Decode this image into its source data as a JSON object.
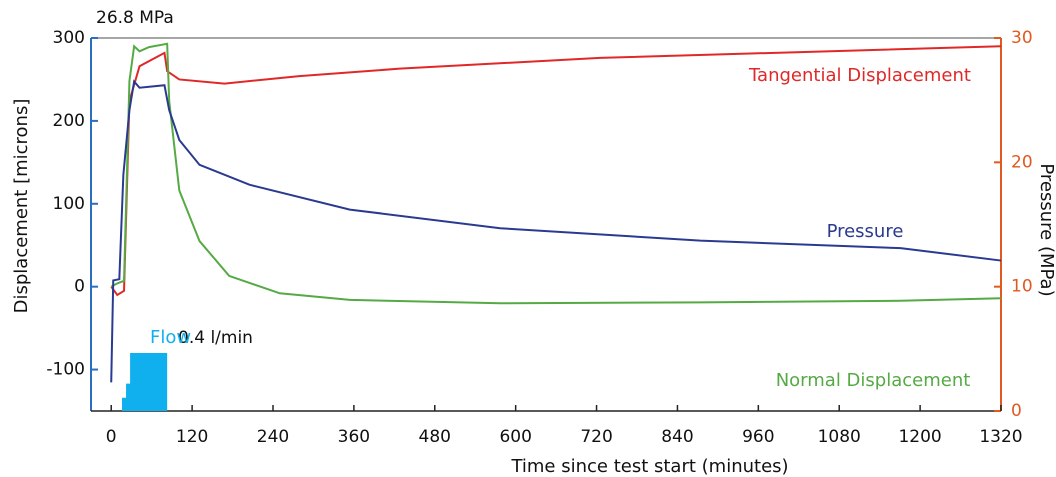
{
  "chart_data": {
    "type": "line",
    "title": "26.8 MPa",
    "x_label": "Time since test start (minutes)",
    "y_label": "Displacement [microns]",
    "y2_label": "Pressure (MPa)",
    "xlim": [
      -30,
      1320
    ],
    "xticks": [
      0,
      120,
      240,
      360,
      480,
      600,
      720,
      840,
      960,
      1080,
      1200,
      1320
    ],
    "ylim": [
      -150,
      300
    ],
    "yticks": [
      -100,
      0,
      100,
      200,
      300
    ],
    "y2lim": [
      0,
      30
    ],
    "y2ticks": [
      0,
      10,
      20,
      30
    ],
    "series": [
      {
        "name": "Tangential Displacement",
        "color": "#e02828",
        "x": [
          0,
          9,
          19,
          27,
          42,
          79,
          83,
          101,
          168,
          279,
          428,
          725,
          1023,
          1320
        ],
        "values": [
          0,
          -10,
          -5,
          224,
          266,
          282,
          260,
          250,
          245,
          254,
          263,
          276,
          283,
          290
        ]
      },
      {
        "name": "Normal Displacement",
        "color": "#55aa44",
        "x": [
          0,
          9,
          19,
          27,
          34,
          42,
          56,
          83,
          86,
          101,
          131,
          175,
          250,
          354,
          577,
          874,
          1171,
          1320
        ],
        "values": [
          0,
          4,
          7,
          248,
          290,
          284,
          289,
          293,
          224,
          116,
          55,
          13,
          -8,
          -16,
          -20,
          -19,
          -17,
          -14
        ]
      },
      {
        "name": "Pressure",
        "color": "#2a3a90",
        "axis": "y2",
        "x": [
          0,
          3,
          12,
          18,
          27,
          34,
          42,
          79,
          86,
          101,
          131,
          205,
          354,
          577,
          874,
          1171,
          1320
        ],
        "values": [
          2.3,
          10.5,
          10.6,
          19,
          24.2,
          26.5,
          26,
          26.2,
          24.2,
          21.8,
          19.8,
          18.2,
          16.2,
          14.7,
          13.7,
          13.1,
          12.1
        ]
      },
      {
        "name": "Flow",
        "color": "#10b0ee",
        "kind": "step-area",
        "x": [
          16,
          22,
          28,
          83
        ],
        "values": [
          -134,
          -117,
          -80,
          -80
        ]
      }
    ],
    "annotations": [
      "0.4 l/min"
    ]
  }
}
